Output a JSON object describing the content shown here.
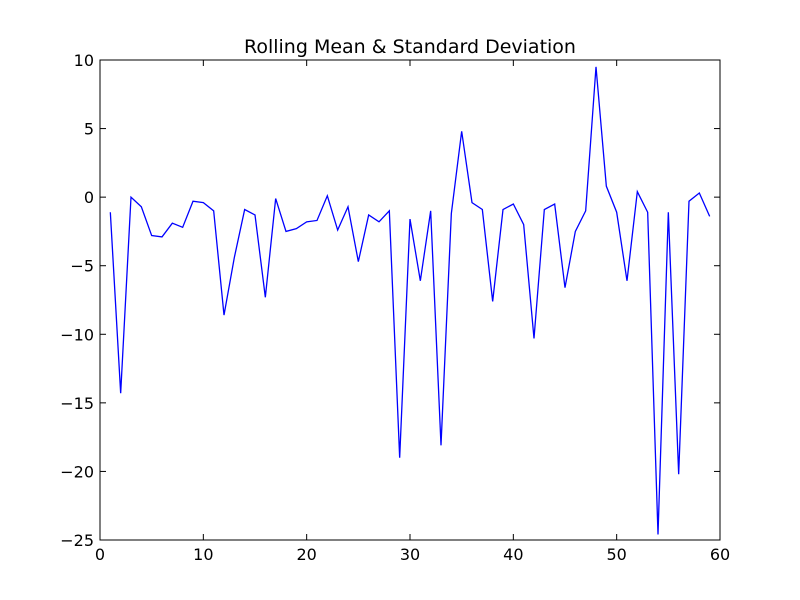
{
  "chart_data": {
    "type": "line",
    "title": "Rolling Mean & Standard Deviation",
    "xlabel": "",
    "ylabel": "",
    "xlim": [
      0,
      60
    ],
    "ylim": [
      -25,
      10
    ],
    "xticks": [
      0,
      10,
      20,
      30,
      40,
      50,
      60
    ],
    "yticks": [
      10,
      5,
      0,
      -5,
      -10,
      -15,
      -20,
      -25
    ],
    "xtick_labels": [
      "0",
      "10",
      "20",
      "30",
      "40",
      "50",
      "60"
    ],
    "ytick_labels": [
      "10",
      "5",
      "0",
      "−5",
      "−10",
      "−15",
      "−20",
      "−25"
    ],
    "grid": false,
    "legend": "none",
    "series": [
      {
        "color": "#0000ff",
        "x": [
          1,
          2,
          3,
          4,
          5,
          6,
          7,
          8,
          9,
          10,
          11,
          12,
          13,
          14,
          15,
          16,
          17,
          18,
          19,
          20,
          21,
          22,
          23,
          24,
          25,
          26,
          27,
          28,
          29,
          30,
          31,
          32,
          33,
          34,
          35,
          36,
          37,
          38,
          39,
          40,
          41,
          42,
          43,
          44,
          45,
          46,
          47,
          48,
          49,
          50,
          51,
          52,
          53,
          54,
          55,
          56,
          57,
          58,
          59
        ],
        "values": [
          -1.1,
          -14.3,
          0.0,
          -0.7,
          -2.8,
          -2.9,
          -1.9,
          -2.2,
          -0.3,
          -0.4,
          -1.0,
          -8.6,
          -4.4,
          -0.9,
          -1.3,
          -7.3,
          -0.1,
          -2.5,
          -2.3,
          -1.8,
          -1.7,
          0.1,
          -2.4,
          -0.7,
          -4.7,
          -1.3,
          -1.8,
          -1.0,
          -19.0,
          -1.6,
          -6.1,
          -1.0,
          -18.1,
          -1.2,
          4.8,
          -0.4,
          -0.9,
          -7.6,
          -0.9,
          -0.5,
          -2.0,
          -10.3,
          -0.9,
          -0.5,
          -6.6,
          -2.5,
          -1.0,
          9.5,
          0.8,
          -1.1,
          -6.1,
          0.4,
          -1.1,
          -24.6,
          -1.1,
          -20.2,
          -0.3,
          0.3,
          -1.4
        ]
      }
    ]
  }
}
